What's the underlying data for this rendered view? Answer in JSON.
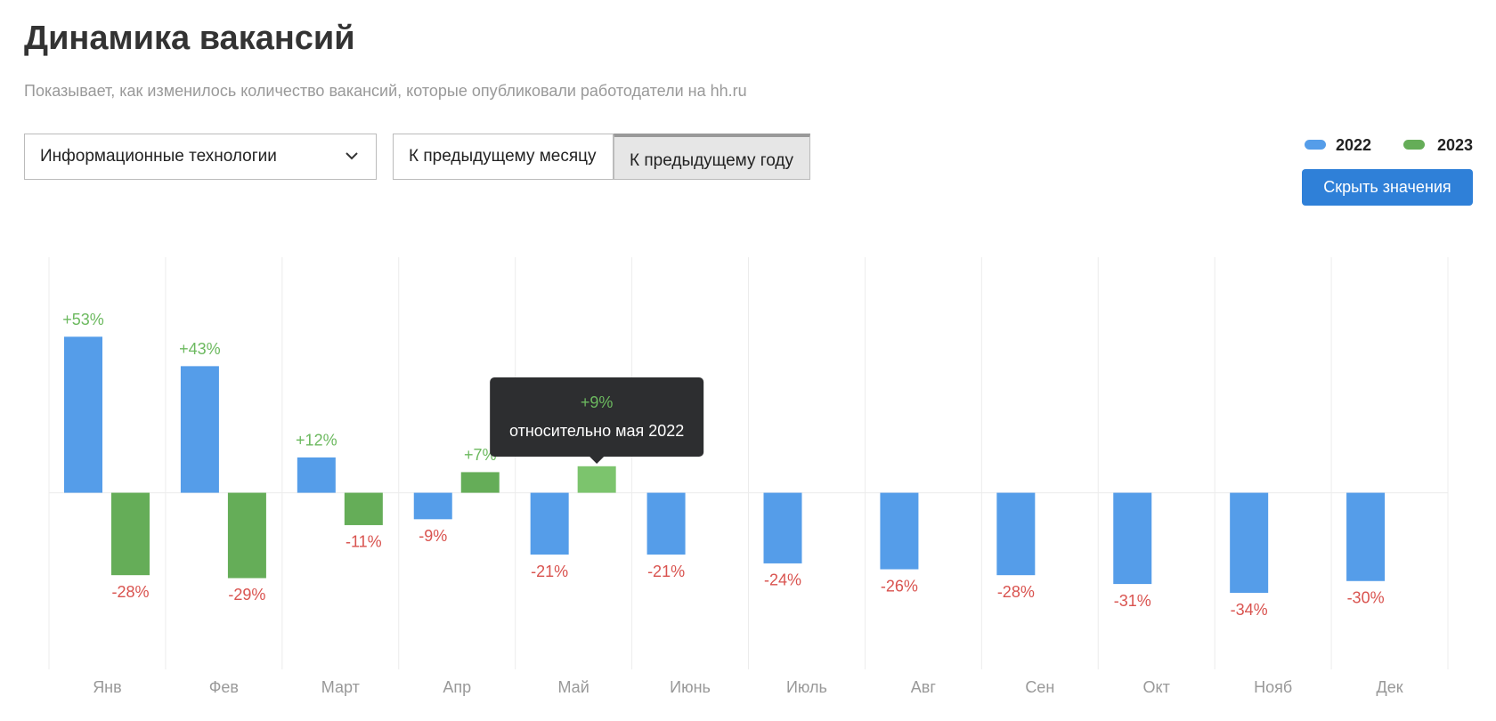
{
  "header": {
    "title": "Динамика вакансий",
    "subtitle": "Показывает, как изменилось количество вакансий, которые опубликовали работодатели на hh.ru"
  },
  "controls": {
    "dropdown": "Информационные технологии",
    "toggle": [
      "К предыдущему месяцу",
      "К предыдущему году"
    ],
    "button": "Скрыть значения"
  },
  "chart_data": {
    "type": "bar",
    "categories": [
      "Янв",
      "Фев",
      "Март",
      "Апр",
      "Май",
      "Июнь",
      "Июль",
      "Авг",
      "Сен",
      "Окт",
      "Нояб",
      "Дек"
    ],
    "series": [
      {
        "name": "2022",
        "color": "#559de9",
        "values": [
          53,
          43,
          12,
          -9,
          -21,
          -21,
          -24,
          -26,
          -28,
          -31,
          -34,
          -30
        ],
        "value_labels": [
          "+53%",
          "+43%",
          "+12%",
          "-9%",
          "-21%",
          "-21%",
          "-24%",
          "-26%",
          "-28%",
          "-31%",
          "-34%",
          "-30%"
        ]
      },
      {
        "name": "2023",
        "color": "#65ad58",
        "values": [
          -28,
          -29,
          -11,
          7,
          9,
          null,
          null,
          null,
          null,
          null,
          null,
          null
        ],
        "value_labels": [
          "-28%",
          "-29%",
          "-11%",
          "+7%",
          null,
          null,
          null,
          null,
          null,
          null,
          null,
          null
        ]
      }
    ],
    "ylim": [
      -60,
      80
    ],
    "grid": true,
    "legend": "top-right",
    "positive_label_color": "#6cb95f",
    "negative_label_color": "#d9534f",
    "tooltip": {
      "label": "+9%",
      "text": "относительно мая 2022"
    }
  }
}
